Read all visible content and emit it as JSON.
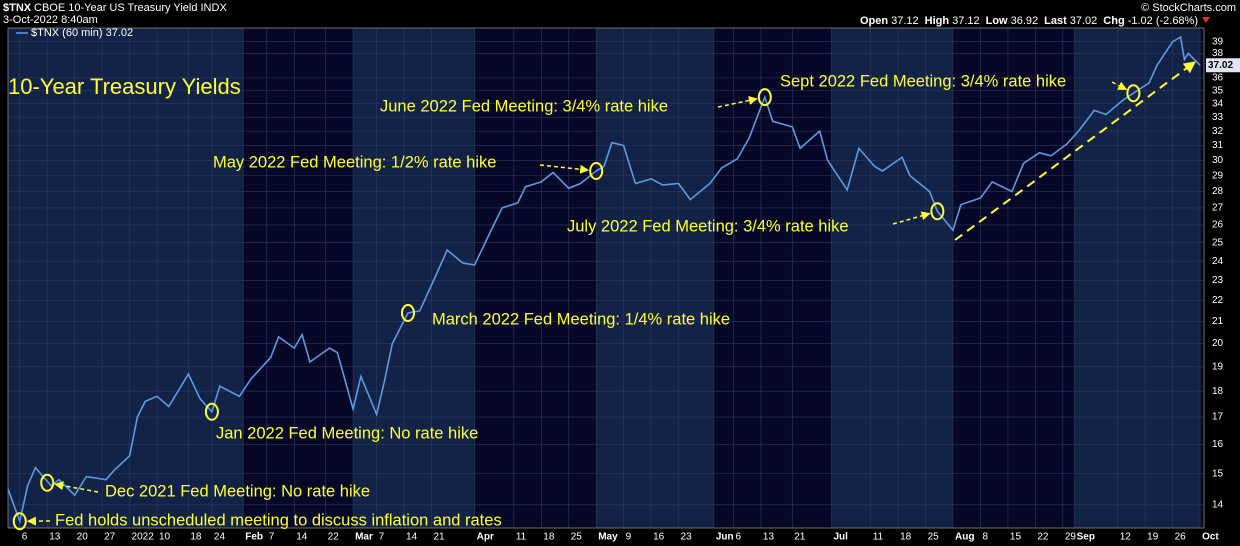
{
  "header": {
    "symbol": "$TNX",
    "name": "CBOE 10-Year US Treasury Yield INDX",
    "date": "3-Oct-2022 8:40am",
    "credit": "© StockCharts.com",
    "stats": [
      {
        "label": "Open",
        "value": "37.12"
      },
      {
        "label": "High",
        "value": "37.12"
      },
      {
        "label": "Low",
        "value": "36.92"
      },
      {
        "label": "Last",
        "value": "37.02"
      },
      {
        "label": "Chg",
        "value": "-1.02 (-2.68%)"
      }
    ]
  },
  "chart_data": {
    "type": "line",
    "title": "10-Year Treasury Yields",
    "log_scale": true,
    "grid": true,
    "xlim": [
      "2021-12-03",
      "2022-10-04"
    ],
    "ylim": [
      13.3,
      40.2
    ],
    "yticks": [
      14,
      15,
      16,
      17,
      18,
      19,
      20,
      21,
      22,
      23,
      24,
      25,
      26,
      27,
      28,
      29,
      30,
      31,
      32,
      33,
      34,
      35,
      36,
      38,
      39
    ],
    "xticks": [
      {
        "value": "2021-12-06",
        "label": "6"
      },
      {
        "value": "2021-12-13",
        "label": "13"
      },
      {
        "value": "2021-12-20",
        "label": "20"
      },
      {
        "value": "2021-12-27",
        "label": "27"
      },
      {
        "value": "2022-01-03",
        "label": "2022"
      },
      {
        "value": "2022-01-10",
        "label": "10"
      },
      {
        "value": "2022-01-18",
        "label": "18"
      },
      {
        "value": "2022-01-24",
        "label": "24"
      },
      {
        "value": "2022-02-01",
        "label": "Feb"
      },
      {
        "value": "2022-02-07",
        "label": "7"
      },
      {
        "value": "2022-02-14",
        "label": "14"
      },
      {
        "value": "2022-02-22",
        "label": "22"
      },
      {
        "value": "2022-03-01",
        "label": "Mar"
      },
      {
        "value": "2022-03-07",
        "label": "7"
      },
      {
        "value": "2022-03-14",
        "label": "14"
      },
      {
        "value": "2022-03-21",
        "label": "21"
      },
      {
        "value": "2022-04-01",
        "label": "Apr"
      },
      {
        "value": "2022-04-11",
        "label": "11"
      },
      {
        "value": "2022-04-18",
        "label": "18"
      },
      {
        "value": "2022-04-25",
        "label": "25"
      },
      {
        "value": "2022-05-02",
        "label": "May"
      },
      {
        "value": "2022-05-09",
        "label": "9"
      },
      {
        "value": "2022-05-16",
        "label": "16"
      },
      {
        "value": "2022-05-23",
        "label": "23"
      },
      {
        "value": "2022-06-01",
        "label": "Jun"
      },
      {
        "value": "2022-06-06",
        "label": "6"
      },
      {
        "value": "2022-06-13",
        "label": "13"
      },
      {
        "value": "2022-06-21",
        "label": "21"
      },
      {
        "value": "2022-07-01",
        "label": "Jul"
      },
      {
        "value": "2022-07-11",
        "label": "11"
      },
      {
        "value": "2022-07-18",
        "label": "18"
      },
      {
        "value": "2022-07-25",
        "label": "25"
      },
      {
        "value": "2022-08-01",
        "label": "Aug"
      },
      {
        "value": "2022-08-08",
        "label": "8"
      },
      {
        "value": "2022-08-15",
        "label": "15"
      },
      {
        "value": "2022-08-22",
        "label": "22"
      },
      {
        "value": "2022-08-29",
        "label": "29"
      },
      {
        "value": "2022-09-01",
        "label": "Sep"
      },
      {
        "value": "2022-09-12",
        "label": "12"
      },
      {
        "value": "2022-09-19",
        "label": "19"
      },
      {
        "value": "2022-09-26",
        "label": "26"
      },
      {
        "value": "2022-10-03",
        "label": "Oct"
      }
    ],
    "x": [
      "2021-12-03",
      "2021-12-06",
      "2021-12-08",
      "2021-12-10",
      "2021-12-14",
      "2021-12-16",
      "2021-12-20",
      "2021-12-23",
      "2021-12-28",
      "2021-12-30",
      "2022-01-03",
      "2022-01-05",
      "2022-01-07",
      "2022-01-10",
      "2022-01-13",
      "2022-01-18",
      "2022-01-21",
      "2022-01-24",
      "2022-01-26",
      "2022-01-31",
      "2022-02-03",
      "2022-02-08",
      "2022-02-10",
      "2022-02-14",
      "2022-02-16",
      "2022-02-18",
      "2022-02-23",
      "2022-02-25",
      "2022-03-01",
      "2022-03-03",
      "2022-03-07",
      "2022-03-09",
      "2022-03-11",
      "2022-03-15",
      "2022-03-18",
      "2022-03-22",
      "2022-03-25",
      "2022-03-29",
      "2022-04-01",
      "2022-04-05",
      "2022-04-08",
      "2022-04-12",
      "2022-04-14",
      "2022-04-18",
      "2022-04-21",
      "2022-04-25",
      "2022-04-28",
      "2022-05-02",
      "2022-05-04",
      "2022-05-06",
      "2022-05-09",
      "2022-05-12",
      "2022-05-16",
      "2022-05-19",
      "2022-05-23",
      "2022-05-26",
      "2022-05-31",
      "2022-06-03",
      "2022-06-07",
      "2022-06-10",
      "2022-06-14",
      "2022-06-16",
      "2022-06-21",
      "2022-06-23",
      "2022-06-28",
      "2022-06-30",
      "2022-07-05",
      "2022-07-08",
      "2022-07-12",
      "2022-07-14",
      "2022-07-19",
      "2022-07-21",
      "2022-07-26",
      "2022-07-28",
      "2022-08-01",
      "2022-08-03",
      "2022-08-08",
      "2022-08-11",
      "2022-08-16",
      "2022-08-19",
      "2022-08-23",
      "2022-08-26",
      "2022-08-30",
      "2022-09-02",
      "2022-09-06",
      "2022-09-09",
      "2022-09-13",
      "2022-09-16",
      "2022-09-20",
      "2022-09-22",
      "2022-09-26",
      "2022-09-28",
      "2022-09-29",
      "2022-09-30",
      "2022-10-03"
    ],
    "series": [
      {
        "name": "$TNX (60 min) 37.02",
        "color": "#5b9be0",
        "values": [
          14.5,
          13.5,
          14.6,
          15.2,
          14.6,
          14.8,
          14.3,
          14.9,
          14.8,
          15.1,
          15.6,
          17.0,
          17.6,
          17.8,
          17.4,
          18.7,
          17.7,
          17.2,
          18.2,
          17.8,
          18.5,
          19.4,
          20.3,
          19.8,
          20.4,
          19.2,
          19.8,
          19.6,
          17.3,
          18.6,
          17.1,
          18.4,
          20.0,
          21.4,
          21.5,
          23.2,
          24.6,
          23.9,
          23.8,
          25.6,
          27.0,
          27.3,
          28.3,
          28.6,
          29.2,
          28.2,
          28.5,
          29.3,
          29.6,
          31.2,
          31.0,
          28.5,
          28.8,
          28.4,
          28.5,
          27.5,
          28.5,
          29.5,
          30.1,
          31.5,
          34.5,
          32.7,
          32.3,
          30.8,
          32.0,
          30.0,
          28.1,
          30.8,
          29.6,
          29.3,
          30.2,
          29.0,
          28.0,
          26.8,
          25.7,
          27.2,
          27.6,
          28.6,
          28.0,
          29.8,
          30.5,
          30.3,
          31.1,
          32.0,
          33.5,
          33.2,
          34.2,
          34.8,
          35.6,
          37.0,
          39.0,
          39.4,
          37.5,
          38.0,
          37.02
        ]
      }
    ],
    "last_value": 37.02,
    "annotations": [
      {
        "text": "Fed holds unscheduled meeting to discuss inflation and rates",
        "date": "2021-12-06",
        "value": 13.5
      },
      {
        "text": "Dec 2021 Fed Meeting: No rate hike",
        "date": "2021-12-13",
        "value": 14.7
      },
      {
        "text": "Jan 2022 Fed Meeting: No rate hike",
        "date": "2022-01-24",
        "value": 17.2
      },
      {
        "text": "March 2022 Fed Meeting: 1/4% rate hike",
        "date": "2022-03-15",
        "value": 21.4
      },
      {
        "text": "May 2022 Fed Meeting: 1/2% rate hike",
        "date": "2022-05-02",
        "value": 29.3
      },
      {
        "text": "June 2022 Fed Meeting: 3/4% rate hike",
        "date": "2022-06-14",
        "value": 34.5
      },
      {
        "text": "July 2022 Fed Meeting: 3/4% rate hike",
        "date": "2022-07-28",
        "value": 26.8
      },
      {
        "text": "Sept 2022 Fed Meeting: 3/4% rate hike",
        "date": "2022-09-16",
        "value": 34.8
      }
    ]
  }
}
